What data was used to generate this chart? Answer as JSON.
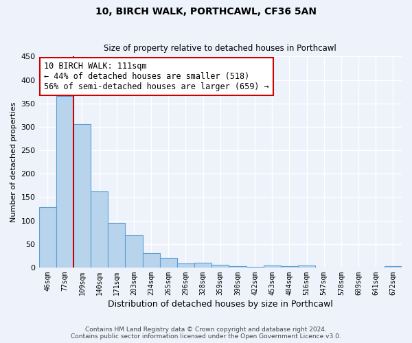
{
  "title1": "10, BIRCH WALK, PORTHCAWL, CF36 5AN",
  "title2": "Size of property relative to detached houses in Porthcawl",
  "xlabel": "Distribution of detached houses by size in Porthcawl",
  "ylabel": "Number of detached properties",
  "bin_labels": [
    "46sqm",
    "77sqm",
    "109sqm",
    "140sqm",
    "171sqm",
    "203sqm",
    "234sqm",
    "265sqm",
    "296sqm",
    "328sqm",
    "359sqm",
    "390sqm",
    "422sqm",
    "453sqm",
    "484sqm",
    "516sqm",
    "547sqm",
    "578sqm",
    "609sqm",
    "641sqm",
    "672sqm"
  ],
  "bar_heights": [
    128,
    365,
    305,
    163,
    95,
    68,
    30,
    20,
    8,
    10,
    6,
    3,
    2,
    4,
    3,
    4,
    0,
    0,
    0,
    0,
    3
  ],
  "bar_color": "#b8d4ed",
  "bar_edge_color": "#5a9fd4",
  "vline_x_index": 2,
  "vline_color": "#cc0000",
  "annotation_text": "10 BIRCH WALK: 111sqm\n← 44% of detached houses are smaller (518)\n56% of semi-detached houses are larger (659) →",
  "annotation_box_color": "#ffffff",
  "annotation_box_edge": "#cc0000",
  "ylim": [
    0,
    450
  ],
  "yticks": [
    0,
    50,
    100,
    150,
    200,
    250,
    300,
    350,
    400,
    450
  ],
  "footer1": "Contains HM Land Registry data © Crown copyright and database right 2024.",
  "footer2": "Contains public sector information licensed under the Open Government Licence v3.0.",
  "bg_color": "#eef2fb"
}
